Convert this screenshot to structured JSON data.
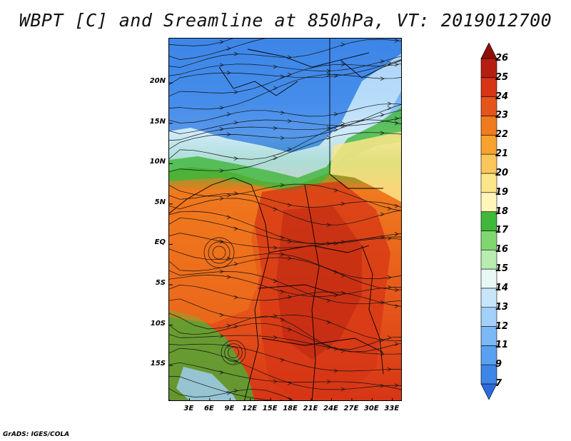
{
  "title": "WBPT [C] and Sreamline at 850hPa, VT: 2019012700",
  "map": {
    "lat_labels": [
      "20N",
      "15N",
      "10N",
      "5N",
      "EQ",
      "5S",
      "10S",
      "15S"
    ],
    "lon_labels": [
      "3E",
      "6E",
      "9E",
      "12E",
      "15E",
      "18E",
      "21E",
      "24E",
      "27E",
      "30E",
      "33E"
    ],
    "lat_values": [
      20,
      15,
      10,
      5,
      0,
      -5,
      -10,
      -15
    ],
    "lon_values": [
      3,
      6,
      9,
      12,
      15,
      18,
      21,
      24,
      27,
      30,
      33
    ],
    "lon_range": [
      0,
      34.5
    ],
    "lat_range": [
      -19.5,
      25.5
    ]
  },
  "colorbar": {
    "labels": [
      "7",
      "9",
      "11",
      "12",
      "13",
      "14",
      "15",
      "16",
      "17",
      "18",
      "19",
      "20",
      "21",
      "22",
      "23",
      "24",
      "25",
      "26"
    ],
    "colors": [
      "#2c6bdc",
      "#3d86e8",
      "#5aa0f0",
      "#7bb8f6",
      "#a3d0fa",
      "#c8e6fb",
      "#e8f8f4",
      "#b8ecb0",
      "#7fd86f",
      "#3fb73a",
      "#fff6b8",
      "#fde68a",
      "#fbc65a",
      "#f7a12e",
      "#f07a1e",
      "#e5541a",
      "#d63516",
      "#b41f10",
      "#8e0e0a"
    ]
  },
  "footer": "GrADS: IGES/COLA"
}
